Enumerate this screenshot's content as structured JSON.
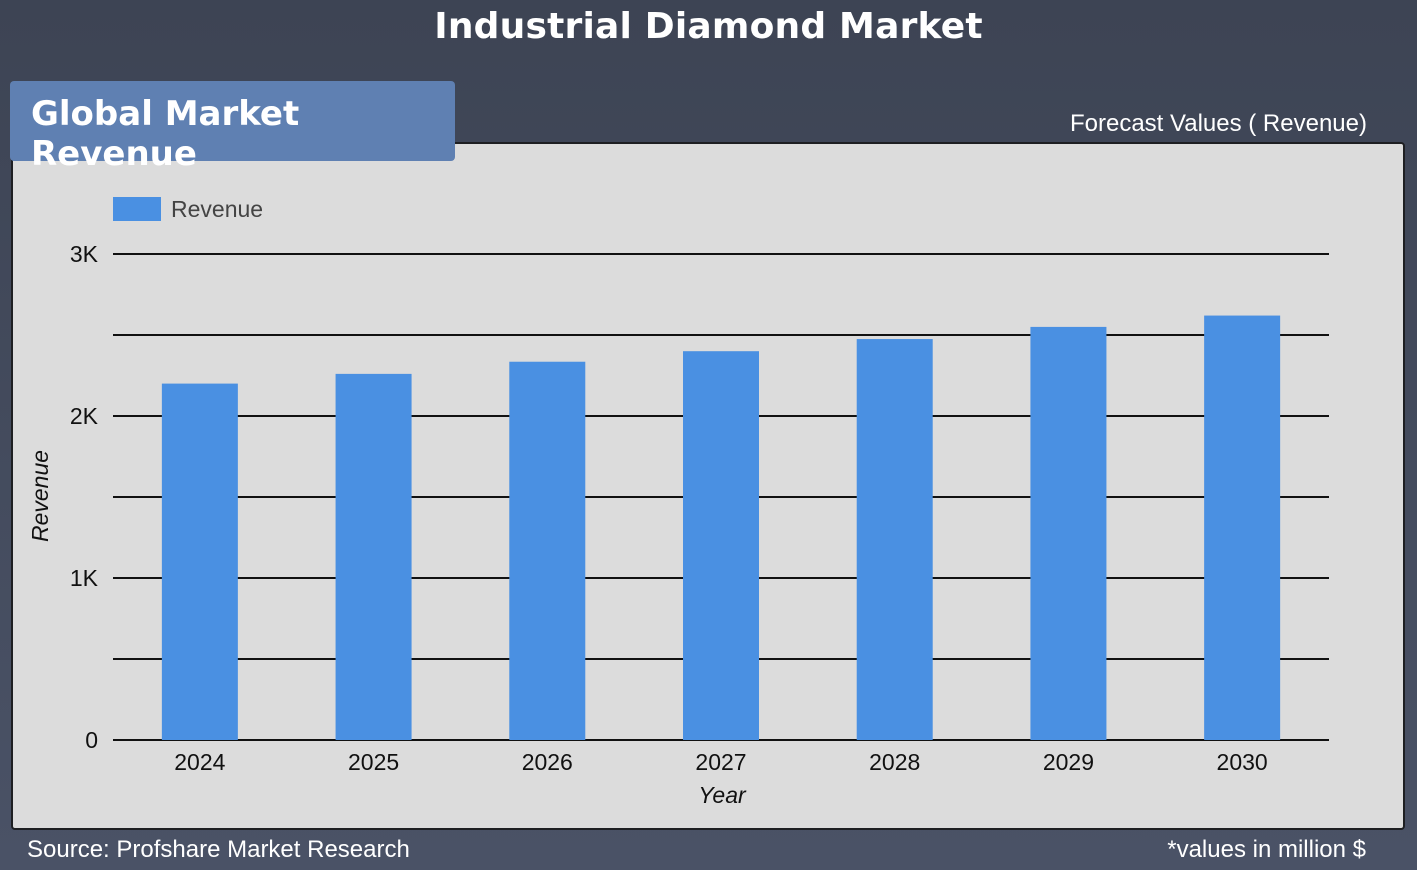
{
  "header": {
    "title": "Industrial Diamond Market"
  },
  "tab": {
    "label": "Global Market Revenue"
  },
  "subtitle": "Forecast Values ( Revenue)",
  "footer": {
    "source": "Source: Profshare Market Research",
    "note": "*values in million $"
  },
  "colors": {
    "bar": "#4a90e2",
    "panel": "#dcdcdc",
    "background": "#434a5b",
    "tab": "#5f80b2"
  },
  "chart_data": {
    "type": "bar",
    "title": "",
    "xlabel": "Year",
    "ylabel": "Revenue",
    "categories": [
      "2024",
      "2025",
      "2026",
      "2027",
      "2028",
      "2029",
      "2030"
    ],
    "series": [
      {
        "name": "Revenue",
        "values": [
          2200,
          2260,
          2335,
          2400,
          2475,
          2550,
          2620
        ]
      }
    ],
    "ylim": [
      0,
      3000
    ],
    "yticks": [
      {
        "value": 0,
        "label": "0"
      },
      {
        "value": 1000,
        "label": "1K"
      },
      {
        "value": 2000,
        "label": "2K"
      },
      {
        "value": 3000,
        "label": "3K"
      }
    ],
    "gridlines": [
      0,
      500,
      1000,
      1500,
      2000,
      2500,
      3000
    ],
    "grid": true,
    "legend": "top-left"
  }
}
